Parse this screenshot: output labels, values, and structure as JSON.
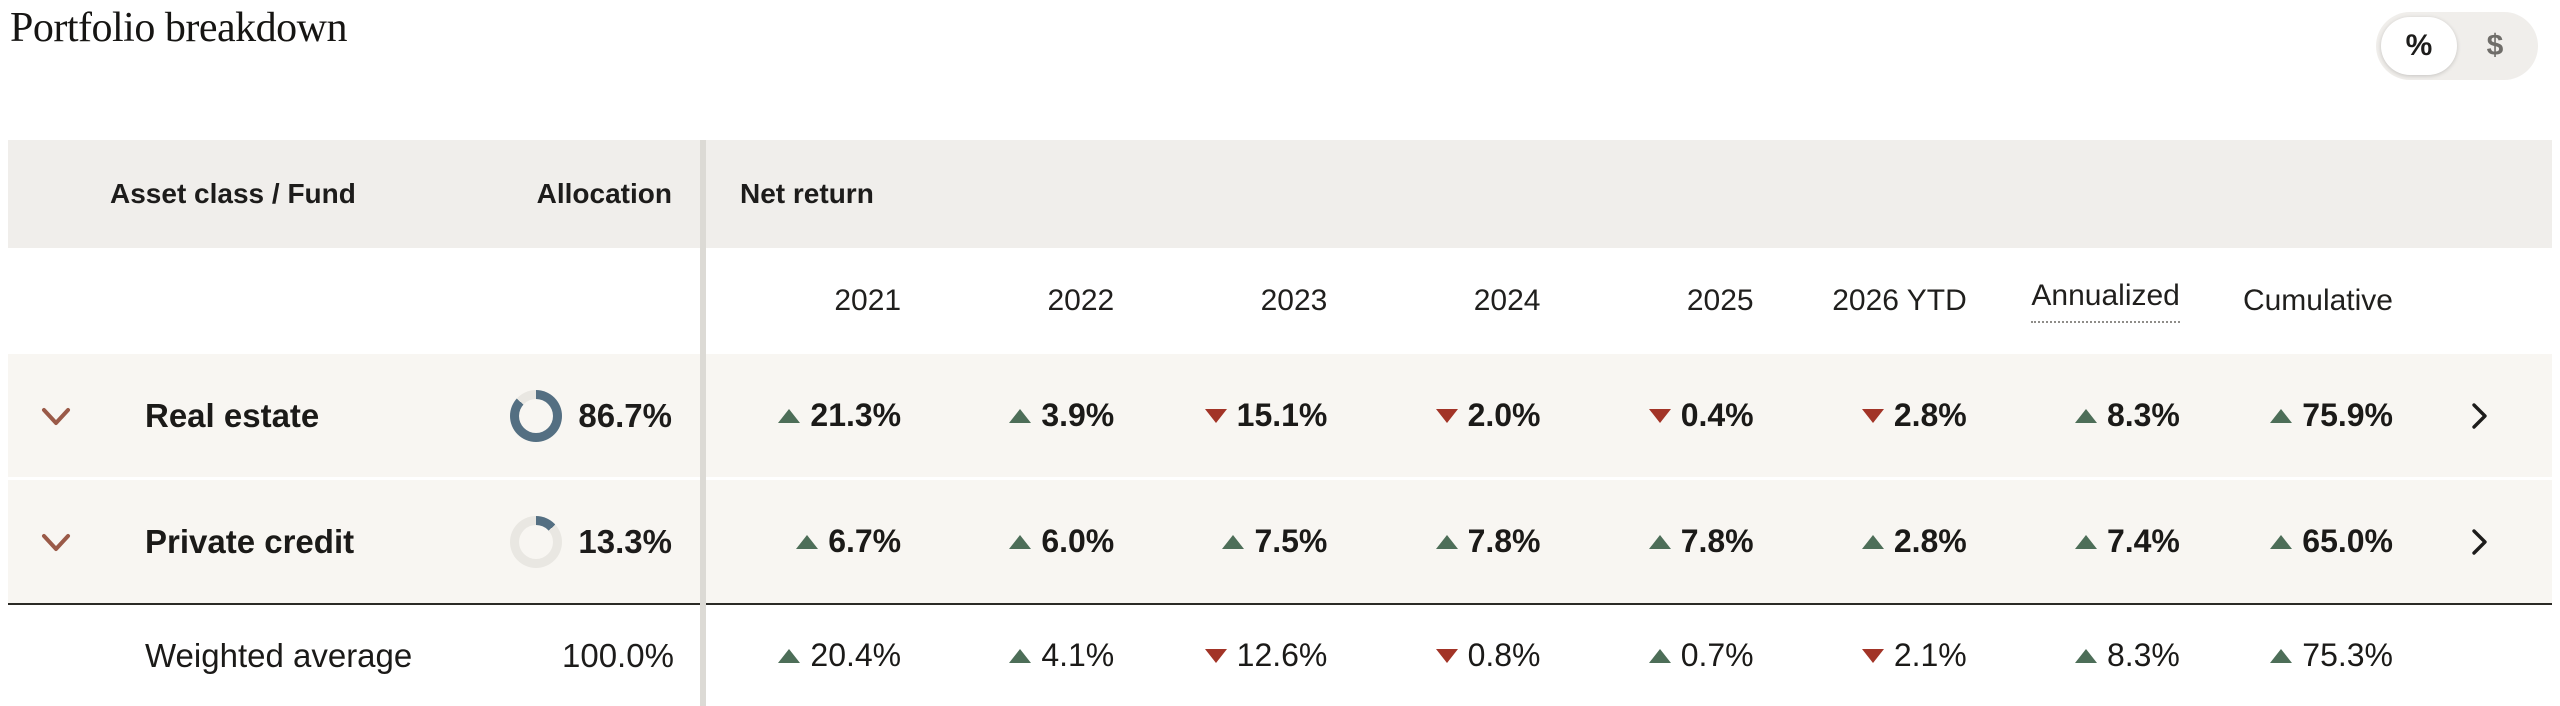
{
  "page": {
    "title": "Portfolio breakdown"
  },
  "unit_toggle": {
    "options": [
      {
        "label": "%",
        "selected": true
      },
      {
        "label": "$",
        "selected": false
      }
    ]
  },
  "table": {
    "header": {
      "asset_class": "Asset class / Fund",
      "allocation": "Allocation",
      "net_return": "Net return"
    },
    "year_columns": [
      {
        "label": "2021"
      },
      {
        "label": "2022"
      },
      {
        "label": "2023"
      },
      {
        "label": "2024"
      },
      {
        "label": "2025"
      },
      {
        "label": "2026 YTD"
      },
      {
        "label": "Annualized",
        "dotted_underline": true
      },
      {
        "label": "Cumulative"
      }
    ],
    "rows": [
      {
        "label": "Real estate",
        "allocation": {
          "text": "86.7%",
          "value": 86.7
        },
        "expandable": true,
        "detail_link": true,
        "returns": [
          {
            "direction": "up",
            "text": "21.3%"
          },
          {
            "direction": "up",
            "text": "3.9%"
          },
          {
            "direction": "down",
            "text": "15.1%"
          },
          {
            "direction": "down",
            "text": "2.0%"
          },
          {
            "direction": "down",
            "text": "0.4%"
          },
          {
            "direction": "down",
            "text": "2.8%"
          },
          {
            "direction": "up",
            "text": "8.3%"
          },
          {
            "direction": "up",
            "text": "75.9%"
          }
        ]
      },
      {
        "label": "Private credit",
        "allocation": {
          "text": "13.3%",
          "value": 13.3
        },
        "expandable": true,
        "detail_link": true,
        "returns": [
          {
            "direction": "up",
            "text": "6.7%"
          },
          {
            "direction": "up",
            "text": "6.0%"
          },
          {
            "direction": "up",
            "text": "7.5%"
          },
          {
            "direction": "up",
            "text": "7.8%"
          },
          {
            "direction": "up",
            "text": "7.8%"
          },
          {
            "direction": "up",
            "text": "2.8%"
          },
          {
            "direction": "up",
            "text": "7.4%"
          },
          {
            "direction": "up",
            "text": "65.0%"
          }
        ]
      }
    ],
    "summary": {
      "label": "Weighted average",
      "allocation": {
        "text": "100.0%",
        "value": 100.0
      },
      "returns": [
        {
          "direction": "up",
          "text": "20.4%"
        },
        {
          "direction": "up",
          "text": "4.1%"
        },
        {
          "direction": "down",
          "text": "12.6%"
        },
        {
          "direction": "down",
          "text": "0.8%"
        },
        {
          "direction": "up",
          "text": "0.7%"
        },
        {
          "direction": "down",
          "text": "2.1%"
        },
        {
          "direction": "up",
          "text": "8.3%"
        },
        {
          "direction": "up",
          "text": "75.3%"
        }
      ]
    }
  },
  "chart_data": {
    "type": "pie",
    "title": "Allocation",
    "categories": [
      "Real estate",
      "Private credit"
    ],
    "values": [
      86.7,
      13.3
    ],
    "unit": "%"
  },
  "colors": {
    "positive": "#4d6e58",
    "negative": "#a23427",
    "expand": "#9a5a48",
    "donut_fill": "#546f82",
    "donut_track": "#e9e7e2",
    "header_bg": "#f0eeeb",
    "row_bg": "#f8f6f2",
    "divider": "#dcdad5",
    "border_dark": "#2b2a26",
    "text": "#1d1c1b",
    "text_muted": "#6f6d69",
    "toggle_bg": "#f0eeeb"
  }
}
